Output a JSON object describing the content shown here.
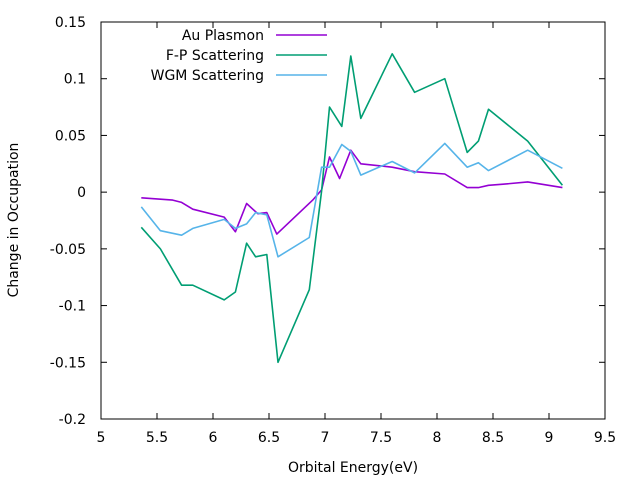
{
  "chart_data": {
    "type": "line",
    "xlabel": "Orbital Energy(eV)",
    "ylabel": "Change in Occupation",
    "xlim": [
      5,
      9.5
    ],
    "ylim": [
      -0.2,
      0.15
    ],
    "xticks": [
      5,
      5.5,
      6,
      6.5,
      7,
      7.5,
      8,
      8.5,
      9,
      9.5
    ],
    "yticks": [
      -0.2,
      -0.15,
      -0.1,
      -0.05,
      0,
      0.05,
      0.1,
      0.15
    ],
    "xtick_labels": [
      "5",
      "5.5",
      "6",
      "6.5",
      "7",
      "7.5",
      "8",
      "8.5",
      "9",
      "9.5"
    ],
    "ytick_labels": [
      "-0.2",
      "-0.15",
      "-0.1",
      "-0.05",
      "0",
      "0.05",
      "0.1",
      "0.15"
    ],
    "legend_position": "top-left",
    "grid": false,
    "series": [
      {
        "name": "Au Plasmon",
        "color": "#9400d3",
        "x": [
          5.36,
          5.5,
          5.64,
          5.72,
          5.82,
          6.1,
          6.2,
          6.3,
          6.4,
          6.48,
          6.57,
          6.89,
          6.97,
          7.04,
          7.13,
          7.23,
          7.32,
          7.6,
          7.8,
          8.07,
          8.27,
          8.37,
          8.46,
          8.59,
          8.81,
          9.12
        ],
        "y": [
          -0.005,
          -0.006,
          -0.007,
          -0.009,
          -0.015,
          -0.022,
          -0.035,
          -0.01,
          -0.019,
          -0.018,
          -0.037,
          -0.007,
          0.002,
          0.031,
          0.012,
          0.037,
          0.025,
          0.022,
          0.018,
          0.016,
          0.004,
          0.004,
          0.006,
          0.007,
          0.009,
          0.004
        ]
      },
      {
        "name": "F-P Scattering",
        "color": "#009e73",
        "x": [
          5.36,
          5.53,
          5.72,
          5.82,
          6.1,
          6.2,
          6.3,
          6.38,
          6.48,
          6.58,
          6.86,
          6.97,
          7.04,
          7.15,
          7.23,
          7.32,
          7.6,
          7.8,
          8.07,
          8.27,
          8.37,
          8.46,
          8.81,
          9.12
        ],
        "y": [
          -0.031,
          -0.05,
          -0.082,
          -0.082,
          -0.095,
          -0.088,
          -0.045,
          -0.057,
          -0.055,
          -0.15,
          -0.086,
          0.001,
          0.075,
          0.058,
          0.12,
          0.065,
          0.122,
          0.088,
          0.1,
          0.035,
          0.045,
          0.073,
          0.045,
          0.006
        ]
      },
      {
        "name": "WGM Scattering",
        "color": "#56b4e9",
        "x": [
          5.36,
          5.53,
          5.72,
          5.82,
          6.1,
          6.2,
          6.3,
          6.38,
          6.48,
          6.58,
          6.86,
          6.97,
          7.04,
          7.15,
          7.23,
          7.32,
          7.6,
          7.8,
          8.07,
          8.27,
          8.37,
          8.46,
          8.81,
          9.12
        ],
        "y": [
          -0.013,
          -0.034,
          -0.038,
          -0.032,
          -0.024,
          -0.032,
          -0.028,
          -0.018,
          -0.02,
          -0.057,
          -0.04,
          0.022,
          0.022,
          0.042,
          0.036,
          0.015,
          0.027,
          0.017,
          0.043,
          0.022,
          0.026,
          0.019,
          0.037,
          0.021
        ]
      }
    ]
  }
}
